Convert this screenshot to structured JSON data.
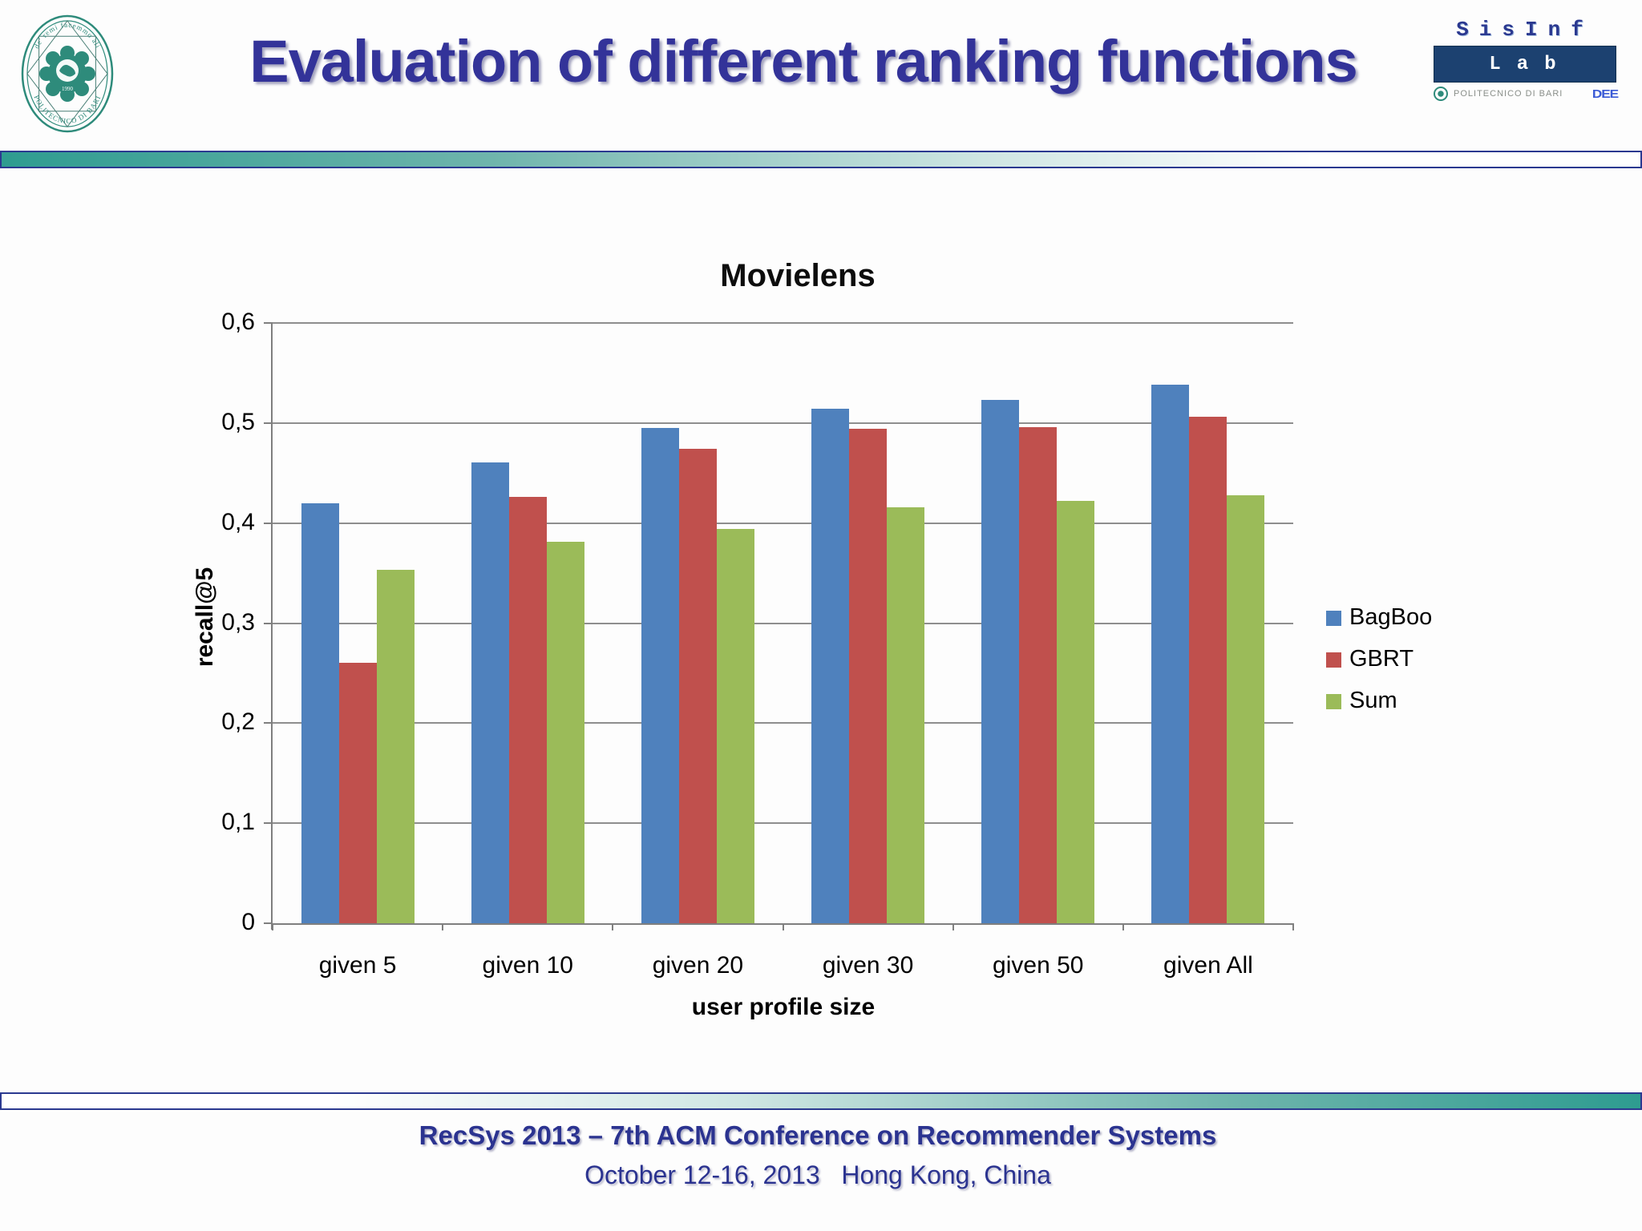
{
  "header": {
    "title": "Evaluation of different ranking functions",
    "seal": {
      "motto": "de' remi facemmo ali",
      "institution": "POLITECNICO DI BARI",
      "year": "1990"
    },
    "sisinf_logo": {
      "top": "SisInf",
      "box": "Lab",
      "subtext": "POLITECNICO DI BARI",
      "mark": "DEE"
    }
  },
  "chart_data": {
    "type": "bar",
    "title": "Movielens",
    "xlabel": "user profile size",
    "ylabel": "recall@5",
    "ylim": [
      0,
      0.6
    ],
    "ytick_labels": [
      "0",
      "0,1",
      "0,2",
      "0,3",
      "0,4",
      "0,5",
      "0,6"
    ],
    "grid": true,
    "legend_position": "right",
    "categories": [
      "given 5",
      "given 10",
      "given 20",
      "given 30",
      "given 50",
      "given All"
    ],
    "series": [
      {
        "name": "BagBoo",
        "color": "#4F81BD",
        "values": [
          0.42,
          0.461,
          0.495,
          0.514,
          0.523,
          0.538
        ]
      },
      {
        "name": "GBRT",
        "color": "#C0504D",
        "values": [
          0.26,
          0.426,
          0.474,
          0.494,
          0.496,
          0.506
        ]
      },
      {
        "name": "Sum",
        "color": "#9BBB59",
        "values": [
          0.353,
          0.381,
          0.394,
          0.416,
          0.422,
          0.428
        ]
      }
    ]
  },
  "footer": {
    "line1": "RecSys 2013 – 7th ACM Conference on Recommender Systems",
    "line2": "October 12-16, 2013   Hong Kong, China"
  },
  "colors": {
    "title_text": "#333399",
    "band_teal": "#2E9C90",
    "band_border": "#2B3990",
    "footer_text": "#2B3390",
    "seal_teal": "#2E8B7B",
    "gridline": "#8E8E8E",
    "axis": "#7F7F7F"
  }
}
